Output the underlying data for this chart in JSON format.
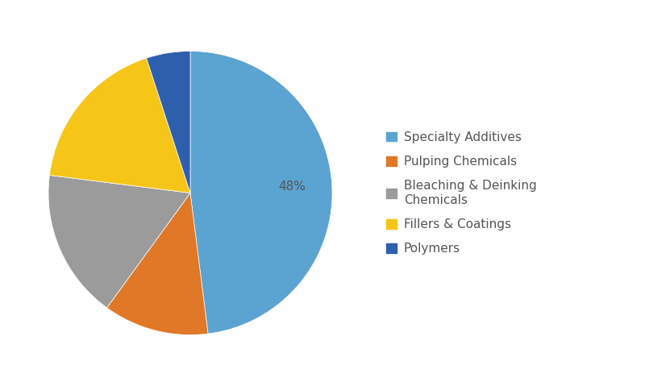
{
  "labels": [
    "Specialty Additives",
    "Pulping Chemicals",
    "Bleaching & Deinking\nChemicals",
    "Fillers & Coatings",
    "Polymers"
  ],
  "legend_labels": [
    "Specialty Additives",
    "Pulping Chemicals",
    "Bleaching & Deinking\nChemicals",
    "Fillers & Coatings",
    "Polymers"
  ],
  "sizes": [
    48,
    12,
    17,
    18,
    5
  ],
  "colors": [
    "#5BA3D0",
    "#E07828",
    "#9B9B9B",
    "#F5C518",
    "#2E5FAC"
  ],
  "autopct_label": "48%",
  "background_color": "#ffffff",
  "startangle": 90,
  "figsize": [
    8.0,
    4.79
  ],
  "dpi": 100,
  "legend_fontsize": 11,
  "pct_fontsize": 11,
  "pct_color": "#555555"
}
